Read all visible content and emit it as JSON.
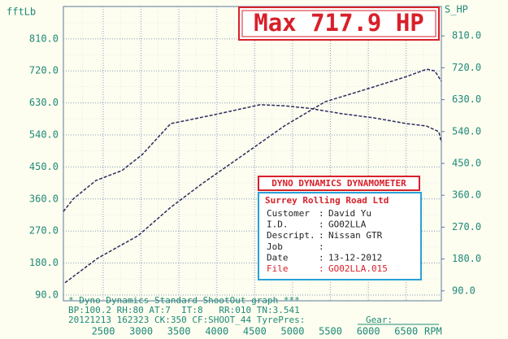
{
  "chart_data": {
    "type": "line",
    "title": "Max 717.9 HP",
    "y_label": "fftLb",
    "y2_label": "S_HP",
    "x_label": "RPM",
    "xlim": [
      1974,
      6964
    ],
    "xticks": [
      2500,
      3000,
      3500,
      4000,
      4500,
      5000,
      5500,
      6000,
      6500
    ],
    "ylim": [
      74,
      901
    ],
    "yticks": [
      {
        "value": 90,
        "label": "90.0"
      },
      {
        "value": 180,
        "label": "180.0"
      },
      {
        "value": 270,
        "label": "270.0"
      },
      {
        "value": 360,
        "label": "360.0"
      },
      {
        "value": 450,
        "label": "450.0"
      },
      {
        "value": 540,
        "label": "540.0"
      },
      {
        "value": 630,
        "label": "630.0"
      },
      {
        "value": 720,
        "label": "720.0"
      },
      {
        "value": 810,
        "label": "810.0"
      }
    ],
    "y2lim": [
      62,
      893
    ],
    "y2ticks": [
      {
        "value": 90,
        "label": "90.0"
      },
      {
        "value": 180,
        "label": "180.0"
      },
      {
        "value": 270,
        "label": "270.0"
      },
      {
        "value": 360,
        "label": "360.0"
      },
      {
        "value": 450,
        "label": "450.0"
      },
      {
        "value": 540,
        "label": "540.0"
      },
      {
        "value": 630,
        "label": "630.0"
      },
      {
        "value": 720,
        "label": "720.0"
      },
      {
        "value": 810,
        "label": "810.0"
      }
    ],
    "grid": true,
    "series": [
      {
        "color": "#2b2b5e",
        "axis": "y",
        "x": [
          1974,
          2103,
          2403,
          2747,
          3015,
          3391,
          3605,
          4034,
          4571,
          4893,
          5215,
          5644,
          6073,
          6502,
          6770,
          6931,
          6964
        ],
        "values": [
          325,
          360,
          412,
          440,
          485,
          572,
          581,
          600,
          625,
          622,
          615,
          600,
          588,
          572,
          565,
          549,
          520
        ]
      },
      {
        "color": "#2b2b5e",
        "axis": "y2",
        "x": [
          1996,
          2425,
          2961,
          3391,
          3820,
          4356,
          4893,
          5429,
          5966,
          6502,
          6770,
          6878,
          6964
        ],
        "values": [
          113,
          182,
          246,
          326,
          395,
          475,
          556,
          624,
          659,
          695,
          716,
          711,
          682
        ]
      }
    ]
  },
  "info_panel": {
    "header": "DYNO DYNAMICS DYNAMOMETER",
    "company": "Surrey Rolling Road Ltd",
    "rows": [
      {
        "label": "Customer",
        "value": "David Yu"
      },
      {
        "label": "I.D.",
        "value": "GO02LLA"
      },
      {
        "label": "Descript.",
        "value": "Nissan GTR"
      },
      {
        "label": "Job"
      },
      {
        "label": "Date",
        "value": "13-12-2012"
      },
      {
        "label": "File",
        "value": "GO02LLA.015"
      }
    ]
  },
  "footer": [
    "* Dyno Dynamics Standard ShootOut graph ***",
    "BP:100.2 RH:80 AT:7  IT:8   RR:010 TN:3.541",
    "20121213 162323 CK:350 CF:SHOOT_44 TyrePres:",
    "Gear:"
  ]
}
